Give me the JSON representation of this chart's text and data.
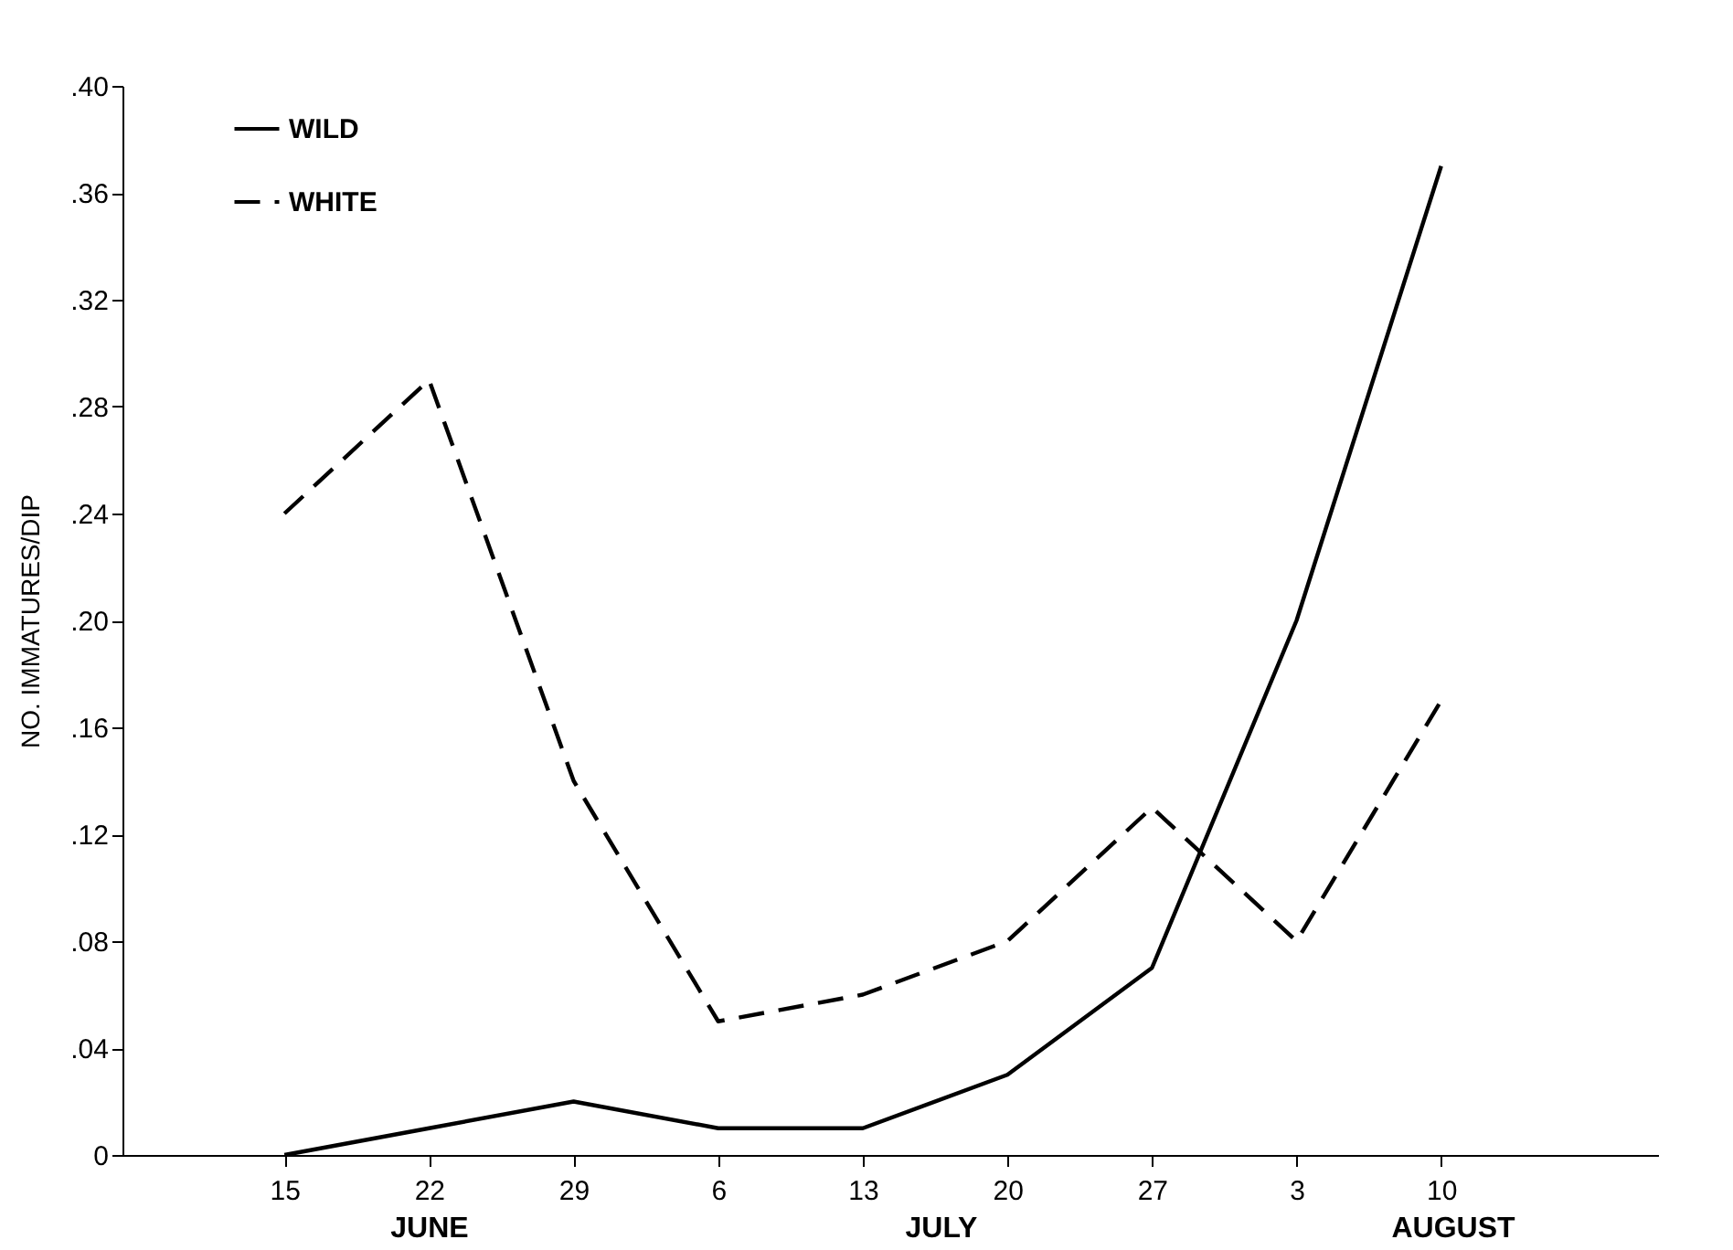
{
  "chart_data": {
    "type": "line",
    "ylabel": "NO. IMMATURES/DIP",
    "categories": [
      "15",
      "22",
      "29",
      "6",
      "13",
      "20",
      "27",
      "3",
      "10"
    ],
    "series": [
      {
        "name": "WILD",
        "color": "#000000",
        "line_style": "solid",
        "values": [
          0,
          0.01,
          0.02,
          0.01,
          0.01,
          0.03,
          0.07,
          0.2,
          0.37
        ]
      },
      {
        "name": "WHITE",
        "color": "#000000",
        "line_style": "dashed",
        "values": [
          0.24,
          0.29,
          0.14,
          0.05,
          0.06,
          0.08,
          0.13,
          0.08,
          0.17
        ]
      }
    ],
    "ylim": [
      0,
      0.4
    ],
    "yticks": [
      0,
      {
        "value": 0.04,
        "label": ".04"
      },
      {
        "value": 0.08,
        "label": ".08"
      },
      {
        "value": 0.12,
        "label": ".12"
      },
      {
        "value": 0.16,
        "label": ".16"
      },
      {
        "value": 0.2,
        "label": ".20"
      },
      {
        "value": 0.24,
        "label": ".24"
      },
      {
        "value": 0.28,
        "label": ".28"
      },
      {
        "value": 0.32,
        "label": ".32"
      },
      {
        "value": 0.36,
        "label": ".36"
      },
      {
        "value": 0.4,
        "label": ".40"
      }
    ],
    "annotations": [
      "JUNE",
      "JULY",
      "AUGUST"
    ],
    "legend": "top left",
    "grid": false,
    "marker": "none"
  }
}
